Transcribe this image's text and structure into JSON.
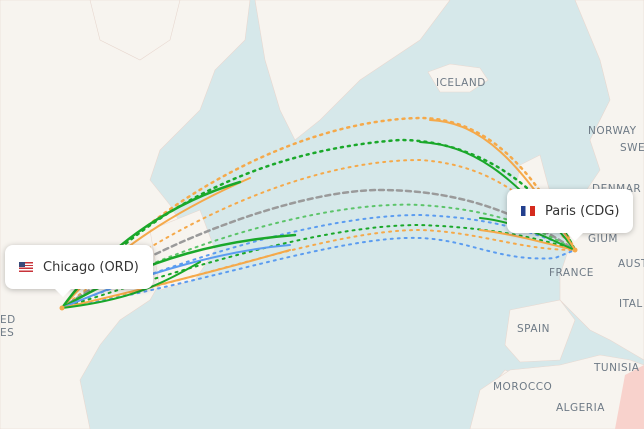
{
  "origin": {
    "label": "Chicago (ORD)",
    "flag": "us-flag-icon"
  },
  "destination": {
    "label": "Paris (CDG)",
    "flag": "fr-flag-icon"
  },
  "map_labels": [
    "ICELAND",
    "NORWAY",
    "SWE",
    "DENMAR",
    "GIUM",
    "AUST",
    "FRANCE",
    "ITAL",
    "SPAIN",
    "TUNISIA",
    "MOROCCO",
    "ALGERIA",
    "ED",
    "ES"
  ],
  "route_colors": {
    "orange": "#f5a94a",
    "green": "#1aa82a",
    "light_green": "#5cc46a",
    "blue": "#5b9cf0",
    "gray": "#9a9a9a"
  },
  "colors": {
    "water": "#d6e8ea",
    "land": "#f7f4ef",
    "border": "#f0c8c0"
  }
}
